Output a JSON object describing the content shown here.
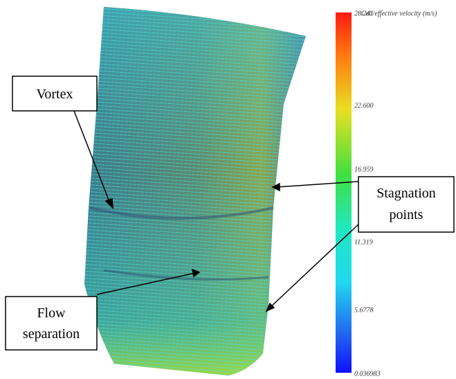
{
  "figure": {
    "colorbar": {
      "title": "Cell/effective velocity (m/s)",
      "labels": [
        "28.241",
        "22.600",
        "16.959",
        "11.319",
        "5.6778",
        "0.036983"
      ]
    },
    "annotations": {
      "vortex": "Vortex",
      "stagnation": [
        "Stagnation",
        "points"
      ],
      "flow_separation": [
        "Flow",
        "separation"
      ]
    }
  }
}
